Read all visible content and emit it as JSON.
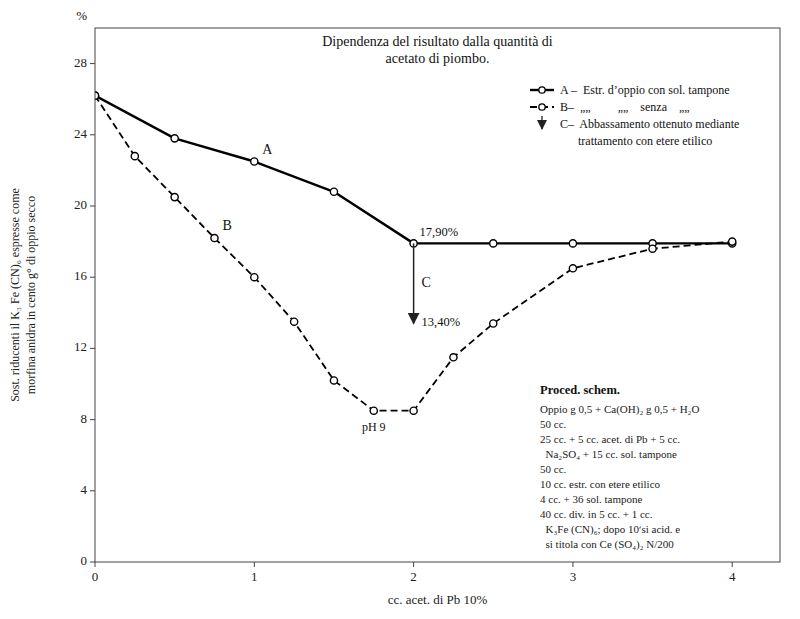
{
  "chart_data": {
    "type": "line",
    "title": [
      "Dipendenza del risultato dalla quantità di",
      "acetato di piombo."
    ],
    "xlabel": "cc. acet. di Pb 10%",
    "ylabel": [
      "Sost. riducenti il K₃ Fe (CN)₆ espresse come",
      "morfina anidra in cento g° di oppio secco"
    ],
    "xlim": [
      0,
      4.3
    ],
    "ylim": [
      0,
      30
    ],
    "xticks": [
      0,
      1,
      2,
      3,
      4
    ],
    "yticks": [
      0,
      4,
      8,
      12,
      16,
      20,
      24,
      28
    ],
    "grid": false,
    "legend": "upper right",
    "series": [
      {
        "name": "A –  Estr. d’oppio con sol. tampone",
        "label": "A",
        "color": "#000000",
        "line_style": "solid",
        "marker": "circle",
        "x": [
          0,
          0.5,
          1.0,
          1.5,
          2.0,
          2.5,
          3.0,
          3.5,
          4.0
        ],
        "values": [
          26.2,
          23.8,
          22.5,
          20.8,
          17.9,
          17.9,
          17.9,
          17.9,
          17.9
        ]
      },
      {
        "name": "B–  „„         „„    senza    „„",
        "label": "B",
        "color": "#000000",
        "line_style": "dashed",
        "marker": "circle",
        "x": [
          0,
          0.25,
          0.5,
          0.75,
          1.0,
          1.25,
          1.5,
          1.75,
          2.0,
          2.25,
          2.5,
          3.0,
          3.5,
          4.0
        ],
        "values": [
          26.2,
          22.8,
          20.5,
          18.2,
          16.0,
          13.5,
          10.2,
          8.5,
          8.5,
          11.5,
          13.4,
          16.5,
          17.6,
          18.0
        ]
      }
    ],
    "annotations": [
      {
        "type": "arrow",
        "label": "C",
        "x": 2.0,
        "values": [
          17.9,
          13.4
        ],
        "value_labels": [
          "17,90%",
          "13,40%"
        ],
        "description": [
          "C–  Abbassamento ottenuto mediante",
          "      trattamento con etere etilico"
        ]
      },
      {
        "type": "point_label",
        "text": "pH 9"
      },
      {
        "type": "axis_unit",
        "text": "%"
      },
      {
        "type": "text_box",
        "title": "Proced. schem.",
        "lines": [
          "Oppio g 0,5 + Ca(OH)₂ g 0,5 + H₂O",
          "50 cc.",
          "25 cc. + 5 cc. acet. di Pb + 5 cc.",
          "  Na₂SO₄ + 15 cc. sol. tampone",
          "50 cc.",
          "10 cc. estr. con etere etilico",
          "4 cc. + 36 sol. tampone",
          "40 cc. div. in 5 cc. + 1 cc.",
          "  K₃Fe (CN)₆; dopo 10ʹsi acid. e",
          "  si titola con Ce (SO₄)₂ N/200"
        ]
      }
    ]
  }
}
